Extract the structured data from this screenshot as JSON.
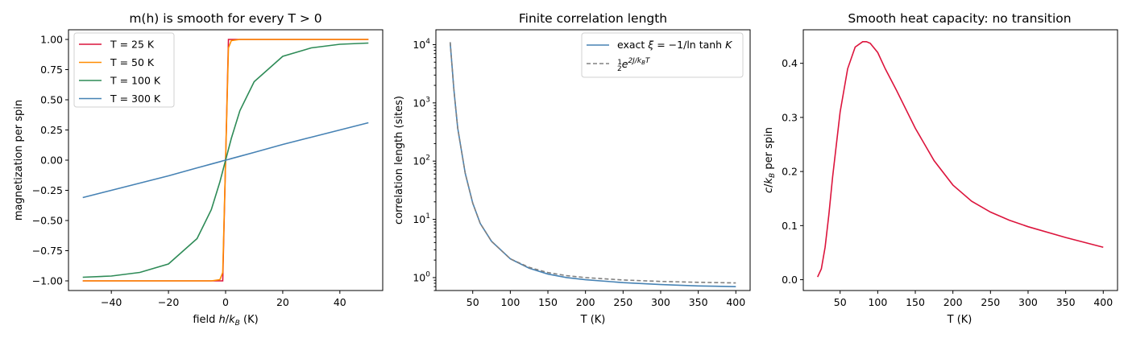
{
  "chart_data": [
    {
      "type": "line",
      "title": "m(h) is smooth for every T > 0",
      "xlabel": "field h/k_B (K)",
      "ylabel": "magnetization per spin",
      "xlim": [
        -55,
        55
      ],
      "ylim": [
        -1.08,
        1.08
      ],
      "xticks": [
        -40,
        -20,
        0,
        20,
        40
      ],
      "xtick_labels": [
        "−40",
        "−20",
        "0",
        "20",
        "40"
      ],
      "yticks": [
        -1.0,
        -0.75,
        -0.5,
        -0.25,
        0.0,
        0.25,
        0.5,
        0.75,
        1.0
      ],
      "ytick_labels": [
        "−1.00",
        "−0.75",
        "−0.50",
        "−0.25",
        "0.00",
        "0.25",
        "0.50",
        "0.75",
        "1.00"
      ],
      "x": [
        -50,
        -40,
        -30,
        -20,
        -10,
        -5,
        -2,
        -1,
        0,
        1,
        2,
        5,
        10,
        20,
        30,
        40,
        50
      ],
      "series": [
        {
          "name": "T = 25 K",
          "color": "#dc143c",
          "values": [
            -1,
            -1,
            -1,
            -1,
            -1,
            -1,
            -1,
            -1,
            0,
            1,
            1,
            1,
            1,
            1,
            1,
            1,
            1
          ]
        },
        {
          "name": "T = 50 K",
          "color": "#ff8c00",
          "values": [
            -1,
            -1,
            -1,
            -1,
            -1,
            -1,
            -0.99,
            -0.93,
            0,
            0.93,
            0.99,
            1,
            1,
            1,
            1,
            1,
            1
          ]
        },
        {
          "name": "T = 100 K",
          "color": "#2e8b57",
          "values": [
            -0.97,
            -0.96,
            -0.93,
            -0.86,
            -0.65,
            -0.41,
            -0.18,
            -0.09,
            0,
            0.09,
            0.18,
            0.41,
            0.65,
            0.86,
            0.93,
            0.96,
            0.97
          ]
        },
        {
          "name": "T = 300 K",
          "color": "#4682b4",
          "values": [
            -0.31,
            -0.25,
            -0.19,
            -0.13,
            -0.064,
            -0.032,
            -0.013,
            -0.006,
            0,
            0.006,
            0.013,
            0.032,
            0.064,
            0.13,
            0.19,
            0.25,
            0.31
          ]
        }
      ],
      "legend": "top-left"
    },
    {
      "type": "line",
      "title": "Finite correlation length",
      "xlabel": "T (K)",
      "ylabel": "correlation length (sites)",
      "xscale": "linear",
      "yscale": "log",
      "xlim": [
        1,
        419
      ],
      "ylim": [
        0.6,
        18000
      ],
      "xticks": [
        50,
        100,
        150,
        200,
        250,
        300,
        350,
        400
      ],
      "yticks": [
        1,
        10,
        100,
        1000,
        10000
      ],
      "ytick_labels": [
        "10^0",
        "10^1",
        "10^2",
        "10^3",
        "10^4"
      ],
      "x": [
        20,
        25,
        30,
        40,
        50,
        60,
        75,
        100,
        125,
        150,
        175,
        200,
        250,
        300,
        350,
        400
      ],
      "series": [
        {
          "name": "exact ξ = −1/ln tanh K",
          "color": "#4682b4",
          "dash": "solid",
          "values": [
            11000,
            1650,
            370,
            62,
            19,
            8.5,
            4.2,
            2.1,
            1.45,
            1.15,
            1.0,
            0.92,
            0.82,
            0.76,
            0.72,
            0.7
          ]
        },
        {
          "name": "½ e^(2J/k_BT)",
          "color": "#808080",
          "dash": "dashed",
          "values": [
            11000,
            1650,
            370,
            62,
            19,
            8.5,
            4.2,
            2.1,
            1.5,
            1.22,
            1.08,
            1.0,
            0.91,
            0.86,
            0.83,
            0.81
          ]
        }
      ],
      "legend": "top-right"
    },
    {
      "type": "line",
      "title": "Smooth heat capacity: no transition",
      "xlabel": "T (K)",
      "ylabel": "c/k_B per spin",
      "xlim": [
        1,
        419
      ],
      "ylim": [
        -0.02,
        0.462
      ],
      "xticks": [
        50,
        100,
        150,
        200,
        250,
        300,
        350,
        400
      ],
      "yticks": [
        0.0,
        0.1,
        0.2,
        0.3,
        0.4
      ],
      "ytick_labels": [
        "0.0",
        "0.1",
        "0.2",
        "0.3",
        "0.4"
      ],
      "x": [
        20,
        25,
        30,
        35,
        40,
        50,
        60,
        70,
        80,
        85,
        90,
        100,
        110,
        125,
        150,
        175,
        200,
        225,
        250,
        275,
        300,
        350,
        400
      ],
      "series": [
        {
          "name": "",
          "color": "#dc143c",
          "values": [
            0.005,
            0.02,
            0.06,
            0.12,
            0.19,
            0.31,
            0.39,
            0.43,
            0.44,
            0.44,
            0.437,
            0.42,
            0.39,
            0.35,
            0.28,
            0.22,
            0.175,
            0.145,
            0.125,
            0.11,
            0.098,
            0.078,
            0.06
          ]
        }
      ]
    }
  ]
}
